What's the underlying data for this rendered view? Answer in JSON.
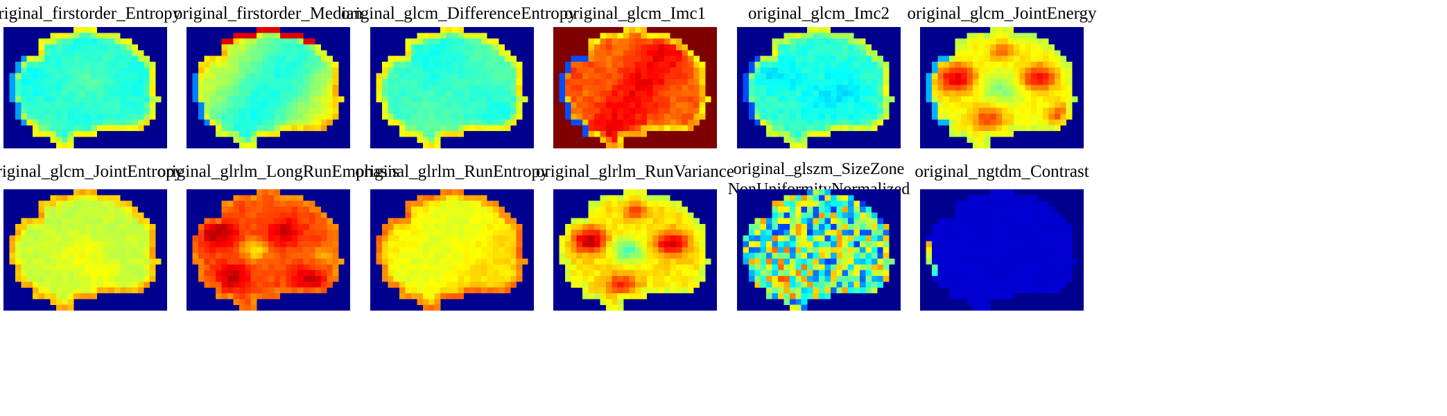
{
  "colormap": "jet",
  "background_color": "#00008f",
  "panels": [
    {
      "id": "firstorder-entropy",
      "title": [
        "original_firstorder_Entropy"
      ],
      "pattern": "entropy"
    },
    {
      "id": "firstorder-median",
      "title": [
        "original_firstorder_Median"
      ],
      "pattern": "median"
    },
    {
      "id": "glcm-difference-entropy",
      "title": [
        "original_glcm_DifferenceEntropy"
      ],
      "pattern": "diffentropy"
    },
    {
      "id": "glcm-imc1",
      "title": [
        "original_glcm_Imc1"
      ],
      "pattern": "imc1"
    },
    {
      "id": "glcm-imc2",
      "title": [
        "original_glcm_Imc2"
      ],
      "pattern": "imc2"
    },
    {
      "id": "glcm-joint-energy",
      "title": [
        "original_glcm_JointEnergy"
      ],
      "pattern": "jointenergy"
    },
    {
      "id": "glcm-joint-entropy",
      "title": [
        "original_glcm_JointEntropy"
      ],
      "pattern": "jointentropy"
    },
    {
      "id": "glrlm-long-run-emphasis",
      "title": [
        "original_glrlm_LongRunEmphasis"
      ],
      "pattern": "longrun"
    },
    {
      "id": "glrlm-run-entropy",
      "title": [
        "original_glrlm_RunEntropy"
      ],
      "pattern": "runentropy"
    },
    {
      "id": "glrlm-run-variance",
      "title": [
        "original_glrlm_RunVariance"
      ],
      "pattern": "runvariance"
    },
    {
      "id": "glszm-size-zone-non-uniformity-normalized",
      "title": [
        "original_glszm_SizeZone",
        "NonUniformityNormalized"
      ],
      "pattern": "szn"
    },
    {
      "id": "ngtdm-contrast",
      "title": [
        "original_ngtdm_Contrast"
      ],
      "pattern": "contrast"
    }
  ]
}
